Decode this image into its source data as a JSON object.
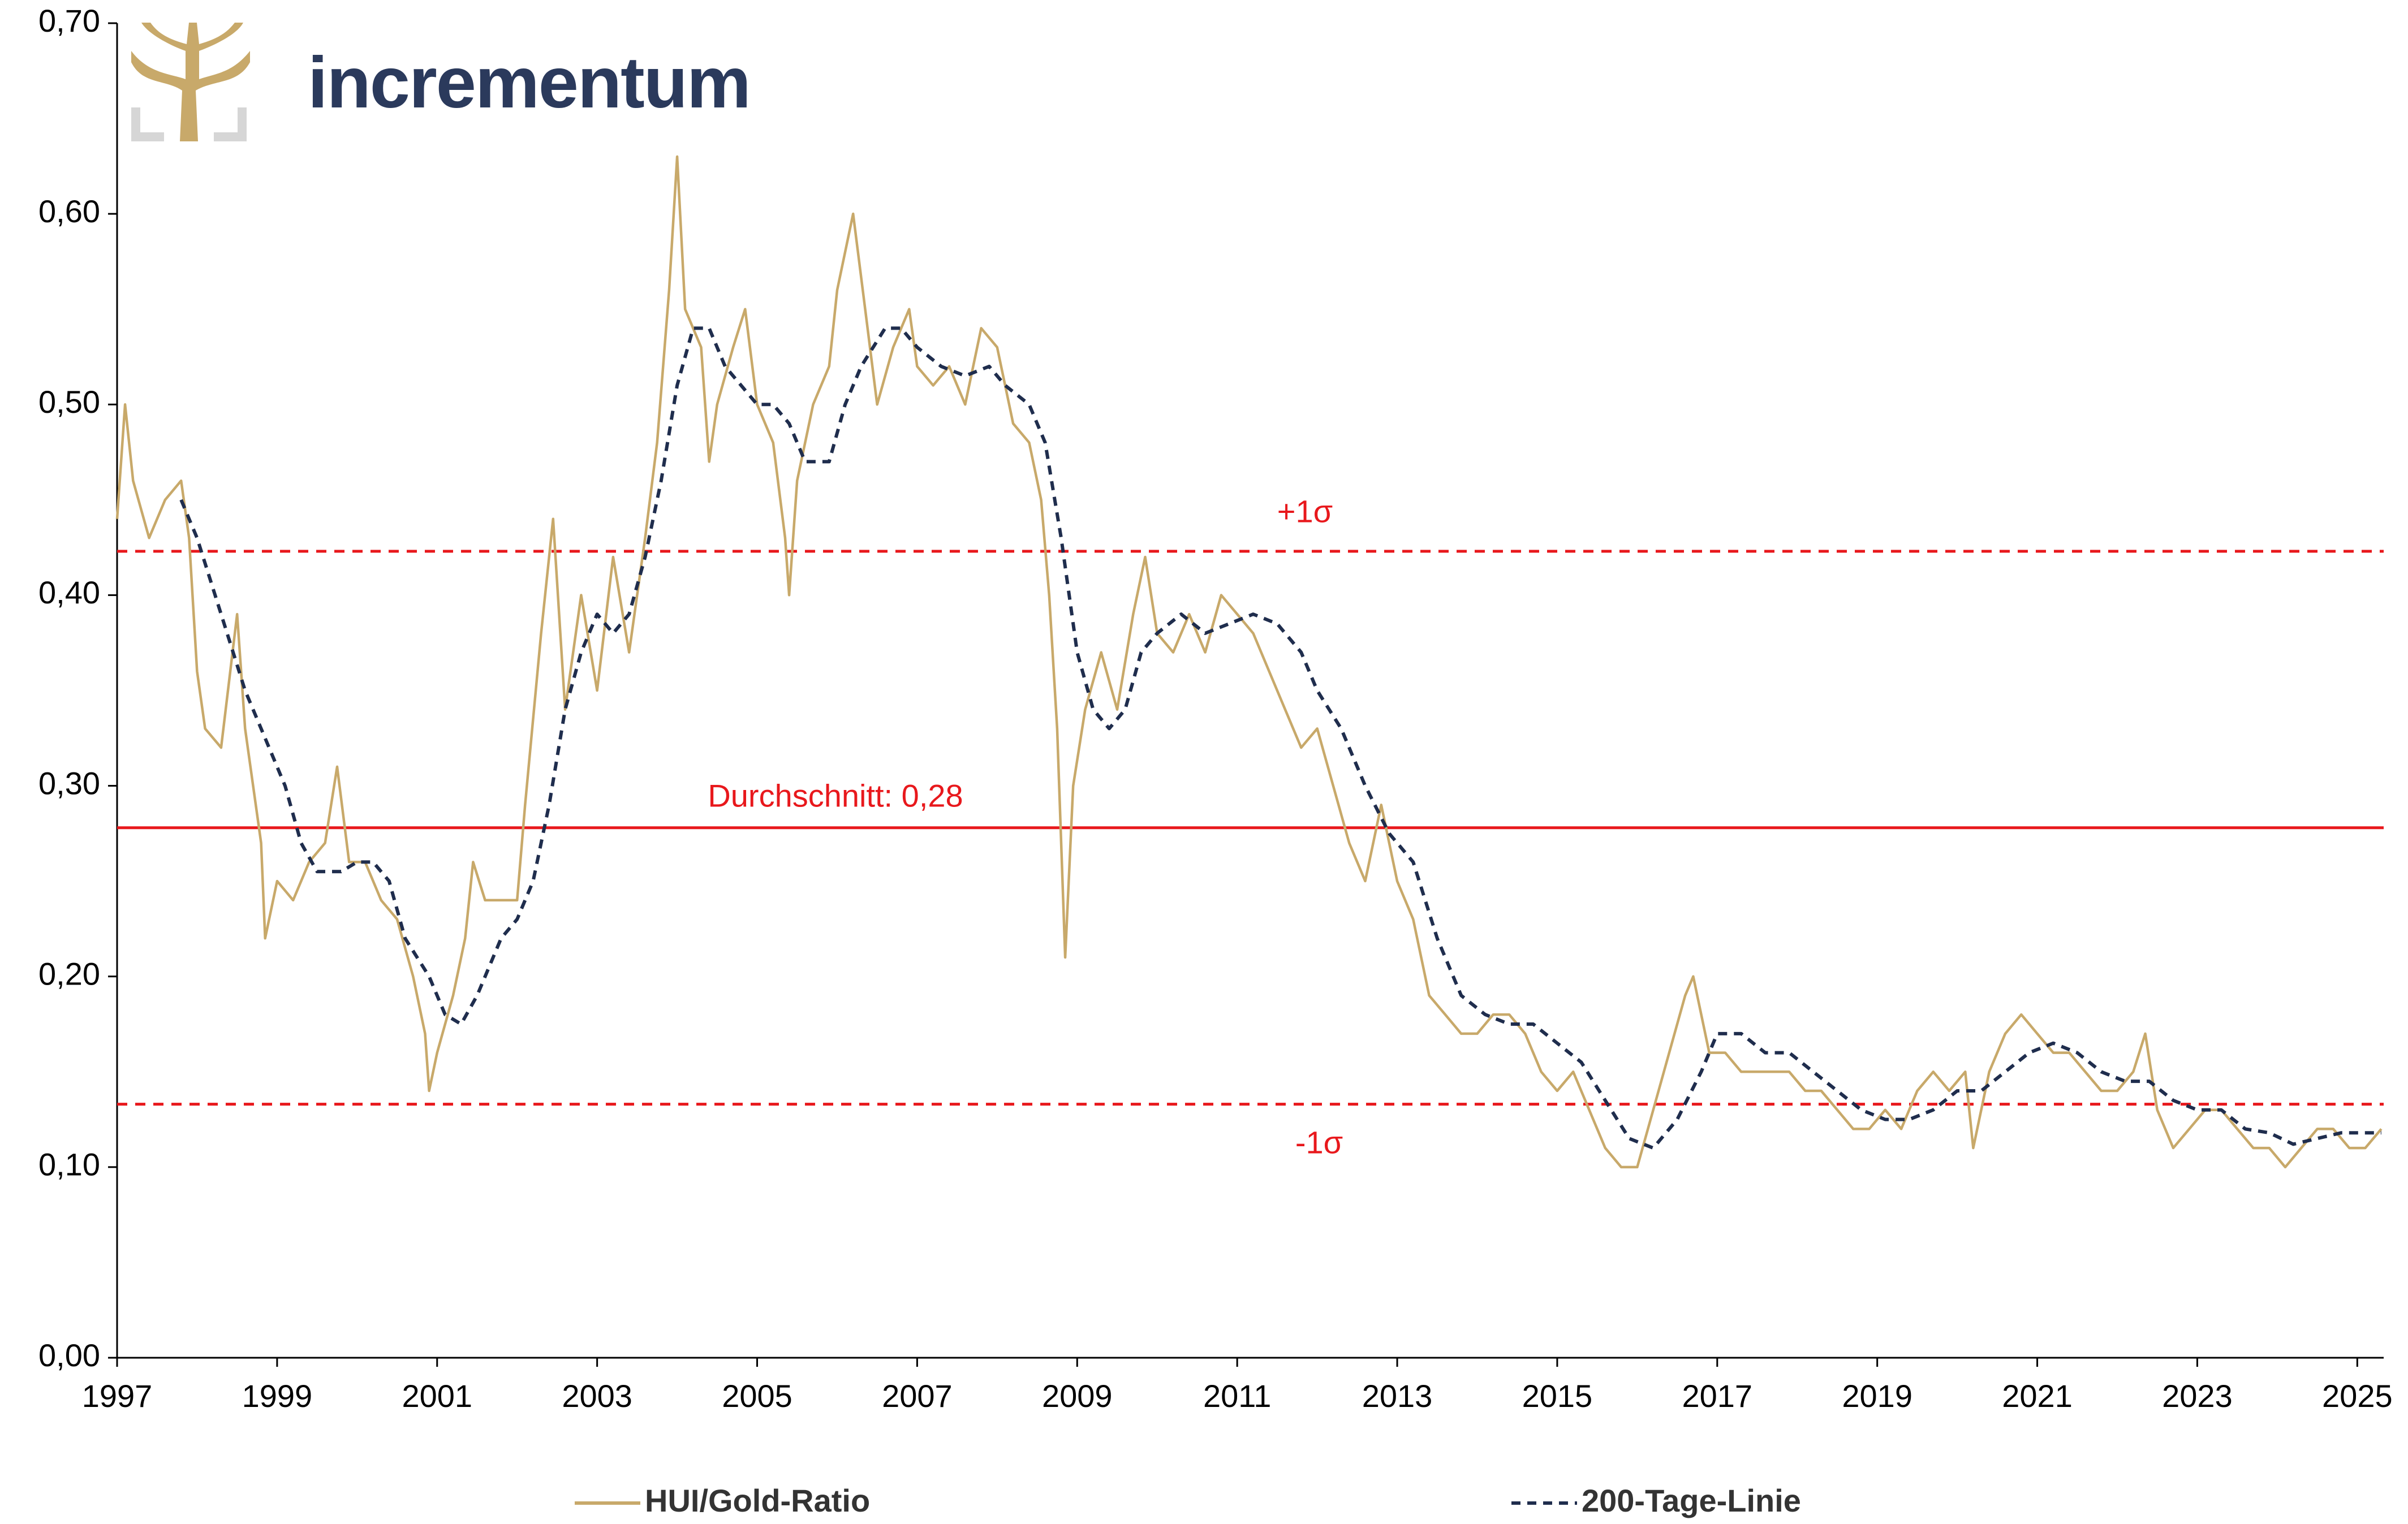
{
  "chart_data": {
    "type": "line",
    "brand": "incrementum",
    "xlim": [
      1997,
      2025.33
    ],
    "xticks": [
      1997,
      1999,
      2001,
      2003,
      2005,
      2007,
      2009,
      2011,
      2013,
      2015,
      2017,
      2019,
      2021,
      2023,
      2025
    ],
    "ylim": [
      0,
      0.7
    ],
    "yticks": [
      {
        "value": 0,
        "label": "0,00"
      },
      {
        "value": 0.1,
        "label": "0,10"
      },
      {
        "value": 0.2,
        "label": "0,20"
      },
      {
        "value": 0.3,
        "label": "0,30"
      },
      {
        "value": 0.4,
        "label": "0,40"
      },
      {
        "value": 0.5,
        "label": "0,50"
      },
      {
        "value": 0.6,
        "label": "0,60"
      },
      {
        "value": 0.7,
        "label": "0,70"
      }
    ],
    "grid": false,
    "legend": "bottom",
    "hlines": [
      {
        "value": 0.423,
        "label": "+1σ",
        "color": "#e8181c",
        "dashed": true
      },
      {
        "value": 0.278,
        "label": "Durchschnitt: 0,28",
        "color": "#e8181c",
        "dashed": false
      },
      {
        "value": 0.133,
        "label": "-1σ",
        "color": "#e8181c",
        "dashed": true
      }
    ],
    "series": [
      {
        "name": "HUI/Gold-Ratio",
        "color": "#c8a96a",
        "dashed": false,
        "x": [
          1997.0,
          1997.1,
          1997.2,
          1997.4,
          1997.6,
          1997.8,
          1997.9,
          1998.0,
          1998.1,
          1998.3,
          1998.5,
          1998.6,
          1998.8,
          1998.85,
          1999.0,
          1999.2,
          1999.4,
          1999.6,
          1999.75,
          1999.9,
          2000.1,
          2000.3,
          2000.5,
          2000.7,
          2000.85,
          2000.9,
          2001.0,
          2001.2,
          2001.35,
          2001.45,
          2001.6,
          2001.8,
          2002.0,
          2002.1,
          2002.3,
          2002.45,
          2002.6,
          2002.8,
          2003.0,
          2003.2,
          2003.4,
          2003.6,
          2003.75,
          2003.9,
          2004.0,
          2004.1,
          2004.3,
          2004.4,
          2004.5,
          2004.7,
          2004.85,
          2005.0,
          2005.2,
          2005.35,
          2005.4,
          2005.5,
          2005.7,
          2005.9,
          2006.0,
          2006.2,
          2006.35,
          2006.5,
          2006.7,
          2006.9,
          2007.0,
          2007.2,
          2007.4,
          2007.6,
          2007.8,
          2008.0,
          2008.2,
          2008.4,
          2008.55,
          2008.65,
          2008.75,
          2008.85,
          2008.95,
          2009.1,
          2009.3,
          2009.5,
          2009.7,
          2009.85,
          2010.0,
          2010.2,
          2010.4,
          2010.6,
          2010.8,
          2011.0,
          2011.2,
          2011.4,
          2011.6,
          2011.8,
          2012.0,
          2012.2,
          2012.4,
          2012.6,
          2012.8,
          2013.0,
          2013.2,
          2013.4,
          2013.6,
          2013.8,
          2014.0,
          2014.2,
          2014.4,
          2014.6,
          2014.8,
          2015.0,
          2015.2,
          2015.4,
          2015.6,
          2015.8,
          2016.0,
          2016.2,
          2016.4,
          2016.6,
          2016.7,
          2016.9,
          2017.1,
          2017.3,
          2017.5,
          2017.7,
          2017.9,
          2018.1,
          2018.3,
          2018.5,
          2018.7,
          2018.9,
          2019.1,
          2019.3,
          2019.5,
          2019.7,
          2019.9,
          2020.1,
          2020.2,
          2020.4,
          2020.6,
          2020.8,
          2021.0,
          2021.2,
          2021.4,
          2021.6,
          2021.8,
          2022.0,
          2022.2,
          2022.35,
          2022.5,
          2022.7,
          2022.9,
          2023.1,
          2023.3,
          2023.5,
          2023.7,
          2023.9,
          2024.1,
          2024.3,
          2024.5,
          2024.7,
          2024.9,
          2025.1,
          2025.3
        ],
        "values": [
          0.44,
          0.5,
          0.46,
          0.43,
          0.45,
          0.46,
          0.43,
          0.36,
          0.33,
          0.32,
          0.39,
          0.33,
          0.27,
          0.22,
          0.25,
          0.24,
          0.26,
          0.27,
          0.31,
          0.26,
          0.26,
          0.24,
          0.23,
          0.2,
          0.17,
          0.14,
          0.16,
          0.19,
          0.22,
          0.26,
          0.24,
          0.24,
          0.24,
          0.29,
          0.38,
          0.44,
          0.34,
          0.4,
          0.35,
          0.42,
          0.37,
          0.43,
          0.48,
          0.56,
          0.63,
          0.55,
          0.53,
          0.47,
          0.5,
          0.53,
          0.55,
          0.5,
          0.48,
          0.43,
          0.4,
          0.46,
          0.5,
          0.52,
          0.56,
          0.6,
          0.55,
          0.5,
          0.53,
          0.55,
          0.52,
          0.51,
          0.52,
          0.5,
          0.54,
          0.53,
          0.49,
          0.48,
          0.45,
          0.4,
          0.33,
          0.21,
          0.3,
          0.34,
          0.37,
          0.34,
          0.39,
          0.42,
          0.38,
          0.37,
          0.39,
          0.37,
          0.4,
          0.39,
          0.38,
          0.36,
          0.34,
          0.32,
          0.33,
          0.3,
          0.27,
          0.25,
          0.29,
          0.25,
          0.23,
          0.19,
          0.18,
          0.17,
          0.17,
          0.18,
          0.18,
          0.17,
          0.15,
          0.14,
          0.15,
          0.13,
          0.11,
          0.1,
          0.1,
          0.13,
          0.16,
          0.19,
          0.2,
          0.16,
          0.16,
          0.15,
          0.15,
          0.15,
          0.15,
          0.14,
          0.14,
          0.13,
          0.12,
          0.12,
          0.13,
          0.12,
          0.14,
          0.15,
          0.14,
          0.15,
          0.11,
          0.15,
          0.17,
          0.18,
          0.17,
          0.16,
          0.16,
          0.15,
          0.14,
          0.14,
          0.15,
          0.17,
          0.13,
          0.11,
          0.12,
          0.13,
          0.13,
          0.12,
          0.11,
          0.11,
          0.1,
          0.11,
          0.12,
          0.12,
          0.11,
          0.11,
          0.12
        ]
      },
      {
        "name": "200-Tage-Linie",
        "color": "#1f2d4d",
        "dashed": true,
        "x": [
          1997.8,
          1998.0,
          1998.3,
          1998.6,
          1998.9,
          1999.1,
          1999.3,
          1999.5,
          1999.8,
          2000.0,
          2000.2,
          2000.4,
          2000.6,
          2000.9,
          2001.1,
          2001.3,
          2001.5,
          2001.8,
          2002.0,
          2002.2,
          2002.4,
          2002.6,
          2002.8,
          2003.0,
          2003.2,
          2003.4,
          2003.6,
          2003.8,
          2004.0,
          2004.2,
          2004.4,
          2004.6,
          2004.8,
          2005.0,
          2005.2,
          2005.4,
          2005.6,
          2005.9,
          2006.1,
          2006.3,
          2006.6,
          2006.8,
          2007.0,
          2007.3,
          2007.6,
          2007.9,
          2008.1,
          2008.4,
          2008.6,
          2008.8,
          2009.0,
          2009.2,
          2009.4,
          2009.6,
          2009.8,
          2010.0,
          2010.3,
          2010.6,
          2010.9,
          2011.2,
          2011.5,
          2011.8,
          2012.0,
          2012.3,
          2012.6,
          2012.9,
          2013.2,
          2013.5,
          2013.8,
          2014.1,
          2014.4,
          2014.7,
          2015.0,
          2015.3,
          2015.6,
          2015.9,
          2016.2,
          2016.5,
          2016.8,
          2017.0,
          2017.3,
          2017.6,
          2017.9,
          2018.2,
          2018.5,
          2018.8,
          2019.1,
          2019.4,
          2019.7,
          2020.0,
          2020.3,
          2020.6,
          2020.9,
          2021.2,
          2021.5,
          2021.8,
          2022.1,
          2022.4,
          2022.7,
          2023.0,
          2023.3,
          2023.6,
          2023.9,
          2024.2,
          2024.5,
          2024.8,
          2025.1,
          2025.3
        ],
        "values": [
          0.45,
          0.43,
          0.39,
          0.35,
          0.32,
          0.3,
          0.27,
          0.255,
          0.255,
          0.26,
          0.26,
          0.25,
          0.22,
          0.2,
          0.18,
          0.175,
          0.19,
          0.22,
          0.23,
          0.25,
          0.29,
          0.34,
          0.37,
          0.39,
          0.38,
          0.39,
          0.42,
          0.46,
          0.51,
          0.54,
          0.54,
          0.52,
          0.51,
          0.5,
          0.5,
          0.49,
          0.47,
          0.47,
          0.5,
          0.52,
          0.54,
          0.54,
          0.53,
          0.52,
          0.515,
          0.52,
          0.51,
          0.5,
          0.48,
          0.43,
          0.37,
          0.34,
          0.33,
          0.34,
          0.37,
          0.38,
          0.39,
          0.38,
          0.385,
          0.39,
          0.385,
          0.37,
          0.35,
          0.33,
          0.3,
          0.275,
          0.26,
          0.22,
          0.19,
          0.18,
          0.175,
          0.175,
          0.165,
          0.155,
          0.135,
          0.115,
          0.11,
          0.125,
          0.15,
          0.17,
          0.17,
          0.16,
          0.16,
          0.15,
          0.14,
          0.13,
          0.125,
          0.125,
          0.13,
          0.14,
          0.14,
          0.15,
          0.16,
          0.165,
          0.16,
          0.15,
          0.145,
          0.145,
          0.135,
          0.13,
          0.13,
          0.12,
          0.118,
          0.112,
          0.115,
          0.118,
          0.118,
          0.118
        ]
      }
    ]
  }
}
